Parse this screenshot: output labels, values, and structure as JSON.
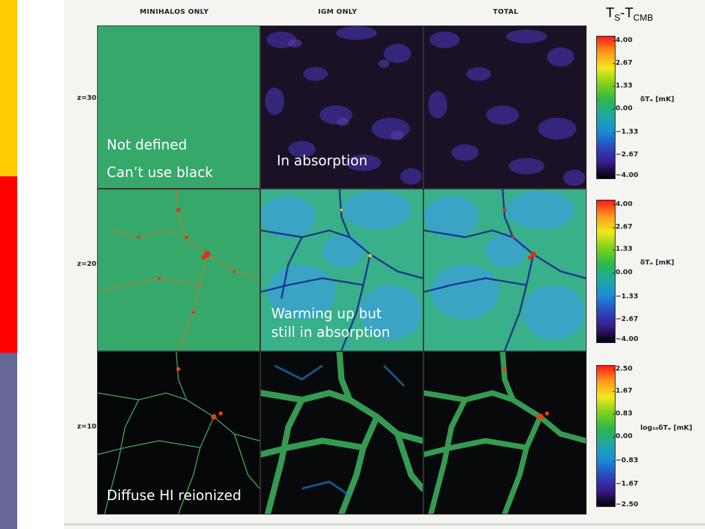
{
  "accent_stripes": [
    {
      "color": "#ffcc00"
    },
    {
      "color": "#ff0000"
    },
    {
      "color": "#666699"
    }
  ],
  "figure": {
    "columns": [
      "MINIHALOS ONLY",
      "IGM ONLY",
      "TOTAL"
    ],
    "rows": [
      {
        "label": "z=30",
        "panels": [
          {
            "name": "minihalos",
            "fill": "#36a86a"
          },
          {
            "name": "igm",
            "fill": "#1b1126"
          },
          {
            "name": "total",
            "fill": "#1b1126"
          }
        ],
        "colorbar": {
          "ticks": [
            "4.00",
            "2.67",
            "1.33",
            "0.00",
            "−1.33",
            "−2.67",
            "−4.00"
          ],
          "label": "δTₑ [mK]"
        }
      },
      {
        "label": "z=20",
        "panels": [
          {
            "name": "minihalos",
            "fill": "#36a86a"
          },
          {
            "name": "igm",
            "fill": "#38b08a"
          },
          {
            "name": "total",
            "fill": "#38b08a"
          }
        ],
        "colorbar": {
          "ticks": [
            "4.00",
            "2.67",
            "1.33",
            "0.00",
            "−1.33",
            "−2.67",
            "−4.00"
          ],
          "label": "δTₑ [mK]"
        }
      },
      {
        "label": "z=10",
        "panels": [
          {
            "name": "minihalos",
            "fill": "#050608"
          },
          {
            "name": "igm",
            "fill": "#07090b"
          },
          {
            "name": "total",
            "fill": "#07090b"
          }
        ],
        "colorbar": {
          "ticks": [
            "2.50",
            "1.67",
            "0.83",
            "0.00",
            "−0.83",
            "−1.67",
            "−2.50"
          ],
          "label": "log₁₀δTₑ [mK]"
        }
      }
    ],
    "colorscale": [
      "#ff1a1a",
      "#ff9a1a",
      "#f2e81a",
      "#7ed21a",
      "#2eb84a",
      "#1fa8a0",
      "#1a8ed8",
      "#2a4ac0",
      "#3a1a8a",
      "#000000"
    ]
  },
  "annotations": {
    "top_right_label": {
      "main": "T",
      "sub1": "S",
      "dash": "-T",
      "sub2": "CMB"
    },
    "not_defined": "Not defined",
    "cant_use_black": "Can’t use black",
    "in_absorption": "In absorption",
    "warming_line1": "Warming up but",
    "warming_line2": "still in absorption",
    "diffuse": "Diffuse HI reionized"
  }
}
